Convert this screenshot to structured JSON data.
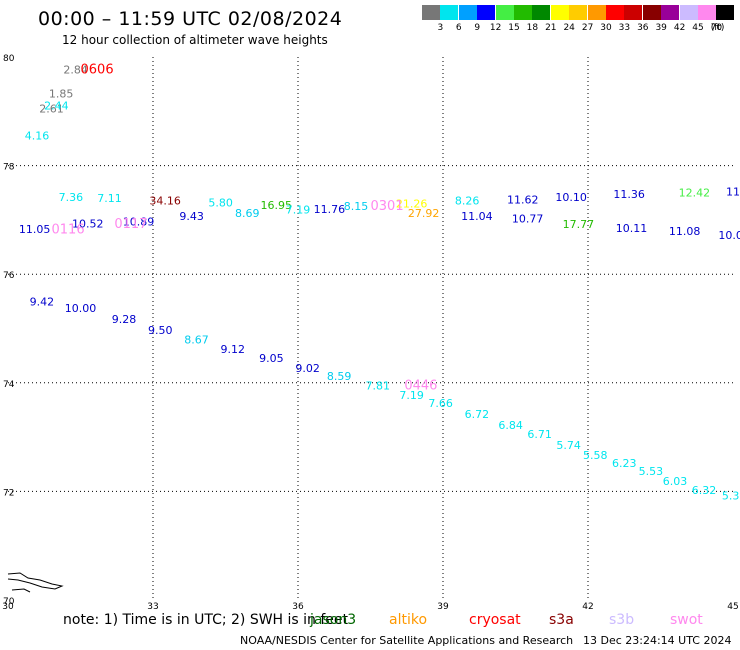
{
  "title": "00:00 – 11:59 UTC 02/08/2024",
  "subtitle": "12 hour collection of altimeter wave heights",
  "legend": {
    "colors": [
      "#777777",
      "#00e5ee",
      "#00a0ff",
      "#0000ff",
      "#44ee44",
      "#22bb00",
      "#008800",
      "#ffff00",
      "#ffcc00",
      "#ff9900",
      "#ff0000",
      "#cc0000",
      "#880000",
      "#990099",
      "#ccbbff",
      "#ff88ee",
      "#000000"
    ],
    "labels": [
      "3",
      "6",
      "9",
      "12",
      "15",
      "18",
      "21",
      "24",
      "27",
      "30",
      "33",
      "36",
      "39",
      "42",
      "45",
      "70"
    ],
    "unit": "(ft)"
  },
  "chart_data": {
    "type": "scatter",
    "xlim": [
      30,
      45
    ],
    "ylim": [
      70,
      80
    ],
    "x_ticks": [
      "30",
      "33",
      "36",
      "39",
      "42",
      "45"
    ],
    "y_ticks": [
      "70",
      "72",
      "74",
      "76",
      "78",
      "80"
    ],
    "grid": true,
    "points": [
      {
        "x": 31.4,
        "y": 79.7,
        "v": "2.84",
        "c": "#777777"
      },
      {
        "x": 31.1,
        "y": 79.25,
        "v": "1.85",
        "c": "#777777"
      },
      {
        "x": 30.9,
        "y": 78.98,
        "v": "2.61",
        "c": "#777777"
      },
      {
        "x": 31.0,
        "y": 79.03,
        "v": "2.44",
        "c": "#00e5ee"
      },
      {
        "x": 30.6,
        "y": 78.48,
        "v": "4.16",
        "c": "#00e5ee"
      },
      {
        "x": 31.3,
        "y": 77.35,
        "v": "7.36",
        "c": "#00e5ee"
      },
      {
        "x": 32.1,
        "y": 77.33,
        "v": "7.11",
        "c": "#00e5ee"
      },
      {
        "x": 30.55,
        "y": 76.76,
        "v": "11.05",
        "c": "#0000cc"
      },
      {
        "x": 31.65,
        "y": 76.86,
        "v": "10.52",
        "c": "#0000cc"
      },
      {
        "x": 32.7,
        "y": 76.9,
        "v": "10.89",
        "c": "#0000cc"
      },
      {
        "x": 33.25,
        "y": 77.28,
        "v": "34.16",
        "c": "#880000"
      },
      {
        "x": 33.8,
        "y": 77.0,
        "v": "9.43",
        "c": "#0000cc"
      },
      {
        "x": 34.4,
        "y": 77.25,
        "v": "5.80",
        "c": "#00e5ee"
      },
      {
        "x": 34.95,
        "y": 77.05,
        "v": "8.69",
        "c": "#00ccee"
      },
      {
        "x": 35.55,
        "y": 77.2,
        "v": "16.95",
        "c": "#22bb00"
      },
      {
        "x": 36.0,
        "y": 77.12,
        "v": "7.19",
        "c": "#00e5ee"
      },
      {
        "x": 36.65,
        "y": 77.13,
        "v": "11.76",
        "c": "#0000cc"
      },
      {
        "x": 37.2,
        "y": 77.18,
        "v": "8.15",
        "c": "#00ccee"
      },
      {
        "x": 38.35,
        "y": 77.23,
        "v": "21.26",
        "c": "#ffff00"
      },
      {
        "x": 38.6,
        "y": 77.05,
        "v": "27.92",
        "c": "#ffa500"
      },
      {
        "x": 39.5,
        "y": 77.28,
        "v": "8.26",
        "c": "#00e5ee"
      },
      {
        "x": 39.7,
        "y": 77.0,
        "v": "11.04",
        "c": "#0000cc"
      },
      {
        "x": 40.65,
        "y": 77.3,
        "v": "11.62",
        "c": "#0000cc"
      },
      {
        "x": 40.75,
        "y": 76.95,
        "v": "10.77",
        "c": "#0000cc"
      },
      {
        "x": 41.65,
        "y": 77.35,
        "v": "10.10",
        "c": "#0000cc"
      },
      {
        "x": 41.8,
        "y": 76.85,
        "v": "17.77",
        "c": "#22bb00"
      },
      {
        "x": 42.85,
        "y": 77.4,
        "v": "11.36",
        "c": "#0000cc"
      },
      {
        "x": 42.9,
        "y": 76.78,
        "v": "10.11",
        "c": "#0000cc"
      },
      {
        "x": 44.2,
        "y": 77.43,
        "v": "12.42",
        "c": "#44ee44"
      },
      {
        "x": 44.0,
        "y": 76.72,
        "v": "11.08",
        "c": "#0000cc"
      },
      {
        "x": 45.0,
        "y": 77.45,
        "v": "11",
        "c": "#0000cc"
      },
      {
        "x": 44.95,
        "y": 76.65,
        "v": "10.0",
        "c": "#0000cc"
      },
      {
        "x": 30.7,
        "y": 75.42,
        "v": "9.42",
        "c": "#0000cc"
      },
      {
        "x": 31.5,
        "y": 75.3,
        "v": "10.00",
        "c": "#0000cc"
      },
      {
        "x": 32.4,
        "y": 75.1,
        "v": "9.28",
        "c": "#0000cc"
      },
      {
        "x": 33.15,
        "y": 74.9,
        "v": "9.50",
        "c": "#0000cc"
      },
      {
        "x": 33.9,
        "y": 74.72,
        "v": "8.67",
        "c": "#00ccee"
      },
      {
        "x": 34.65,
        "y": 74.55,
        "v": "9.12",
        "c": "#0000cc"
      },
      {
        "x": 35.45,
        "y": 74.38,
        "v": "9.05",
        "c": "#0000cc"
      },
      {
        "x": 36.2,
        "y": 74.2,
        "v": "9.02",
        "c": "#0000cc"
      },
      {
        "x": 36.85,
        "y": 74.05,
        "v": "8.59",
        "c": "#00ccee"
      },
      {
        "x": 37.65,
        "y": 73.88,
        "v": "7.81",
        "c": "#00e5ee"
      },
      {
        "x": 38.35,
        "y": 73.7,
        "v": "7.19",
        "c": "#00e5ee"
      },
      {
        "x": 38.95,
        "y": 73.55,
        "v": "7.66",
        "c": "#00e5ee"
      },
      {
        "x": 39.7,
        "y": 73.35,
        "v": "6.72",
        "c": "#00e5ee"
      },
      {
        "x": 40.4,
        "y": 73.15,
        "v": "6.84",
        "c": "#00e5ee"
      },
      {
        "x": 41.0,
        "y": 72.98,
        "v": "6.71",
        "c": "#00e5ee"
      },
      {
        "x": 41.6,
        "y": 72.78,
        "v": "5.74",
        "c": "#00e5ee"
      },
      {
        "x": 42.15,
        "y": 72.6,
        "v": "5.58",
        "c": "#00e5ee"
      },
      {
        "x": 42.75,
        "y": 72.45,
        "v": "6.23",
        "c": "#00e5ee"
      },
      {
        "x": 43.3,
        "y": 72.3,
        "v": "5.53",
        "c": "#00e5ee"
      },
      {
        "x": 43.8,
        "y": 72.12,
        "v": "6.03",
        "c": "#00e5ee"
      },
      {
        "x": 44.4,
        "y": 71.95,
        "v": "6.32",
        "c": "#00e5ee"
      },
      {
        "x": 44.95,
        "y": 71.85,
        "v": "5.3",
        "c": "#00e5ee"
      }
    ],
    "time_labels": [
      {
        "x": 31.5,
        "y": 79.7,
        "v": "0606",
        "c": "#ff0000"
      },
      {
        "x": 30.9,
        "y": 76.75,
        "v": "0116",
        "c": "#ff88ee"
      },
      {
        "x": 32.2,
        "y": 76.85,
        "v": "0117",
        "c": "#ff88ee"
      },
      {
        "x": 37.5,
        "y": 77.18,
        "v": "0301",
        "c": "#ff88ee"
      },
      {
        "x": 38.2,
        "y": 73.88,
        "v": "0446",
        "c": "#ff88ee"
      }
    ]
  },
  "note": "note:  1) Time is in UTC; 2) SWH is in feet",
  "satellites": [
    {
      "name": "jason3",
      "color": "#006600"
    },
    {
      "name": "altiko",
      "color": "#ff9900"
    },
    {
      "name": "cryosat",
      "color": "#ff0000"
    },
    {
      "name": "s3a",
      "color": "#880000"
    },
    {
      "name": "s3b",
      "color": "#ccbbff"
    },
    {
      "name": "swot",
      "color": "#ff88ee"
    }
  ],
  "footer": "NOAA/NESDIS Center for Satellite Applications and Research",
  "footer_time": "13 Dec 23:24:14 UTC 2024"
}
